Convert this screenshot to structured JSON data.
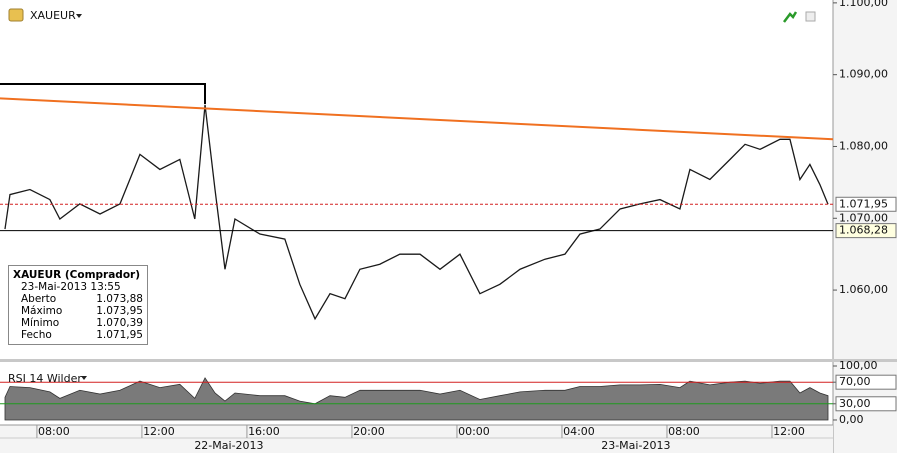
{
  "header": {
    "symbol": "XAUEUR"
  },
  "info_box": {
    "title": "XAUEUR (Comprador)",
    "time": "23-Mai-2013 13:55",
    "rows": [
      [
        "Aberto",
        "1.073,88"
      ],
      [
        "Máximo",
        "1.073,95"
      ],
      [
        "Mínimo",
        "1.070,39"
      ],
      [
        "Fecho",
        "1.071,95"
      ]
    ]
  },
  "chart_data": [
    {
      "type": "line",
      "color": "#1a1a1a",
      "x": [
        6.67,
        6.86,
        7.62,
        8.38,
        8.76,
        9.52,
        10.29,
        11.05,
        11.81,
        12.57,
        13.33,
        13.9,
        14.29,
        14.67,
        15.05,
        15.43,
        16.38,
        17.33,
        17.9,
        18.48,
        19.05,
        19.62,
        20.19,
        20.95,
        21.71,
        22.48,
        23.24,
        24,
        24.76,
        25.52,
        26.29,
        27.24,
        28,
        28.57,
        29.33,
        30.1,
        30.86,
        31.62,
        32.38,
        32.76,
        33.52,
        34.29,
        34.86,
        35.43,
        36.19,
        36.57,
        36.95,
        37.33,
        37.71,
        38.02
      ],
      "values": [
        1068.5,
        1073.3,
        1074.0,
        1072.6,
        1069.9,
        1072.0,
        1070.6,
        1072.0,
        1078.9,
        1076.8,
        1078.2,
        1069.9,
        1085.8,
        1074.0,
        1062.9,
        1069.9,
        1067.8,
        1067.1,
        1060.8,
        1056.0,
        1059.5,
        1058.8,
        1062.9,
        1063.6,
        1065.0,
        1065.0,
        1062.9,
        1065.0,
        1059.5,
        1060.8,
        1062.9,
        1064.3,
        1065.0,
        1067.8,
        1068.5,
        1071.3,
        1072.0,
        1072.6,
        1071.3,
        1076.8,
        1075.4,
        1078.2,
        1080.3,
        1079.6,
        1081.0,
        1081.0,
        1075.4,
        1077.5,
        1074.7,
        1071.95
      ],
      "xlim": [
        6.48,
        38.21
      ],
      "xticks": [
        {
          "value": 8,
          "label": "08:00"
        },
        {
          "value": 12,
          "label": "12:00"
        },
        {
          "value": 16,
          "label": "16:00"
        },
        {
          "value": 20,
          "label": "20:00"
        },
        {
          "value": 24,
          "label": "00:00"
        },
        {
          "value": 28,
          "label": "04:00"
        },
        {
          "value": 32,
          "label": "08:00"
        },
        {
          "value": 36,
          "label": "12:00"
        }
      ],
      "date_labels": [
        {
          "value": 15.2,
          "label": "22-Mai-2013"
        },
        {
          "value": 30.7,
          "label": "23-Mai-2013"
        }
      ],
      "ylim": [
        1050.4,
        1100.4
      ],
      "yticks": [
        {
          "value": 1100,
          "label": "1.100,00"
        },
        {
          "value": 1090,
          "label": "1.090,00"
        },
        {
          "value": 1080,
          "label": "1.080,00"
        },
        {
          "value": 1070,
          "label": "1.070,00"
        },
        {
          "value": 1060,
          "label": "1.060,00"
        }
      ],
      "levels": [
        {
          "value": 1071.95,
          "label": "1.071,95",
          "color": "#d42020"
        },
        {
          "value": 1068.28,
          "label": "1.068,28",
          "color": "#000000"
        }
      ],
      "trend_line": {
        "x": [
          6.48,
          38.21
        ],
        "values": [
          1086.7,
          1081.0
        ],
        "color": "#f07020"
      }
    },
    {
      "type": "area",
      "title": "RSI 14 Wilder",
      "color": "#7a7a7a",
      "x": [
        6.67,
        6.86,
        7.62,
        8.38,
        8.76,
        9.52,
        10.29,
        11.05,
        11.81,
        12.57,
        13.33,
        13.9,
        14.29,
        14.67,
        15.05,
        15.43,
        16.38,
        17.33,
        17.9,
        18.48,
        19.05,
        19.62,
        20.19,
        20.95,
        21.71,
        22.48,
        23.24,
        24,
        24.76,
        25.52,
        26.29,
        27.24,
        28,
        28.57,
        29.33,
        30.1,
        30.86,
        31.62,
        32.38,
        32.76,
        33.52,
        34.29,
        34.86,
        35.43,
        36.19,
        36.57,
        36.95,
        37.33,
        37.71,
        38.02
      ],
      "values": [
        42,
        62,
        60,
        52,
        40,
        55,
        48,
        55,
        72,
        60,
        66,
        40,
        78,
        50,
        35,
        50,
        45,
        45,
        35,
        30,
        45,
        42,
        55,
        55,
        55,
        55,
        48,
        55,
        38,
        45,
        52,
        55,
        55,
        62,
        62,
        65,
        65,
        66,
        60,
        72,
        65,
        70,
        72,
        68,
        72,
        72,
        50,
        60,
        50,
        45
      ],
      "ylim": [
        -9.3,
        107.4
      ],
      "yticks": [
        {
          "value": 100,
          "label": "100,00"
        },
        {
          "value": 70,
          "label": "70,00"
        },
        {
          "value": 30,
          "label": "30,00"
        },
        {
          "value": 0,
          "label": "0,00"
        }
      ],
      "levels": [
        {
          "value": 70,
          "label": "70,00",
          "color": "#d42020"
        },
        {
          "value": 30,
          "label": "30,00",
          "color": "#1e9a1e"
        }
      ]
    }
  ]
}
